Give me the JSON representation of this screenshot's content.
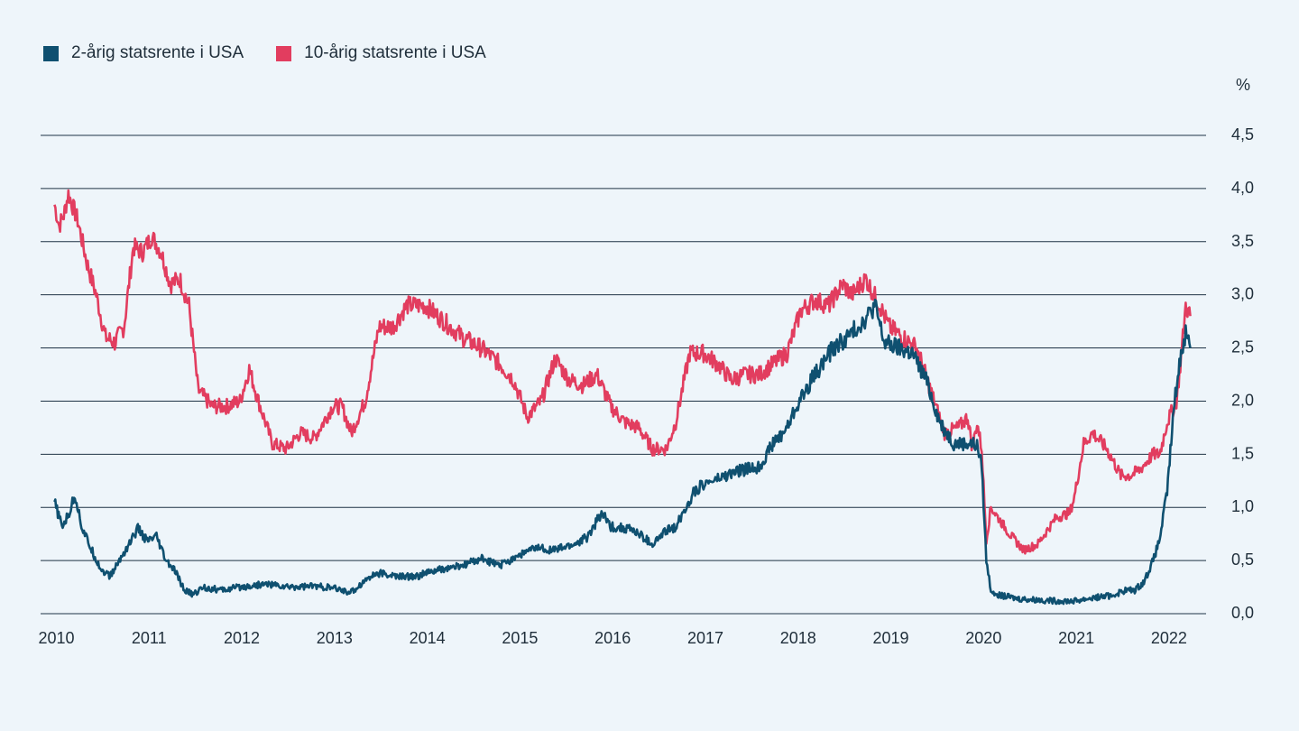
{
  "legend": [
    {
      "name": "2-årig statsrente i USA",
      "color": "#0f5070"
    },
    {
      "name": "10-årig statsrente i USA",
      "color": "#e23d5f"
    }
  ],
  "chart_data": {
    "type": "line",
    "title": "",
    "xlabel": "",
    "ylabel": "%",
    "xlim": [
      2009.85,
      2022.42
    ],
    "ylim": [
      0,
      4.5
    ],
    "x_ticks": [
      "2010",
      "2011",
      "2012",
      "2013",
      "2014",
      "2015",
      "2016",
      "2017",
      "2018",
      "2019",
      "2020",
      "2021",
      "2022"
    ],
    "y_ticks": [
      "0,0",
      "0,5",
      "1,0",
      "1,5",
      "2,0",
      "2,5",
      "3,0",
      "3,5",
      "4,0",
      "4,5"
    ],
    "grid": "horizontal",
    "legend_position": "top-left",
    "series": [
      {
        "name": "2-årig statsrente i USA",
        "color": "#0f5070",
        "x": [
          2010.0,
          2010.08,
          2010.15,
          2010.22,
          2010.3,
          2010.4,
          2010.5,
          2010.6,
          2010.7,
          2010.8,
          2010.9,
          2011.0,
          2011.1,
          2011.2,
          2011.3,
          2011.4,
          2011.5,
          2011.6,
          2011.8,
          2012.0,
          2012.3,
          2012.5,
          2012.8,
          2013.0,
          2013.1,
          2013.2,
          2013.4,
          2013.5,
          2013.7,
          2013.9,
          2014.0,
          2014.2,
          2014.4,
          2014.6,
          2014.8,
          2015.0,
          2015.2,
          2015.4,
          2015.6,
          2015.75,
          2015.9,
          2016.0,
          2016.2,
          2016.3,
          2016.45,
          2016.6,
          2016.7,
          2016.9,
          2017.0,
          2017.2,
          2017.4,
          2017.6,
          2017.75,
          2017.9,
          2018.0,
          2018.2,
          2018.4,
          2018.55,
          2018.75,
          2018.85,
          2018.95,
          2019.1,
          2019.25,
          2019.4,
          2019.55,
          2019.7,
          2019.8,
          2019.9,
          2019.95,
          2020.0,
          2020.05,
          2020.1,
          2020.2,
          2020.4,
          2020.6,
          2020.8,
          2021.0,
          2021.2,
          2021.4,
          2021.55,
          2021.65,
          2021.75,
          2021.85,
          2021.92,
          2022.0,
          2022.08,
          2022.15,
          2022.2,
          2022.25
        ],
        "y": [
          1.05,
          0.82,
          0.92,
          1.12,
          0.8,
          0.6,
          0.42,
          0.35,
          0.5,
          0.65,
          0.8,
          0.68,
          0.72,
          0.5,
          0.4,
          0.22,
          0.18,
          0.25,
          0.22,
          0.25,
          0.28,
          0.25,
          0.26,
          0.24,
          0.22,
          0.2,
          0.35,
          0.38,
          0.35,
          0.35,
          0.38,
          0.42,
          0.45,
          0.52,
          0.45,
          0.55,
          0.62,
          0.6,
          0.65,
          0.72,
          0.95,
          0.82,
          0.8,
          0.75,
          0.65,
          0.78,
          0.82,
          1.15,
          1.22,
          1.28,
          1.35,
          1.38,
          1.6,
          1.75,
          1.95,
          2.25,
          2.5,
          2.6,
          2.78,
          2.9,
          2.55,
          2.5,
          2.45,
          2.2,
          1.8,
          1.6,
          1.6,
          1.6,
          1.58,
          1.4,
          0.5,
          0.22,
          0.17,
          0.14,
          0.13,
          0.12,
          0.12,
          0.15,
          0.17,
          0.22,
          0.22,
          0.3,
          0.5,
          0.7,
          1.15,
          2.0,
          2.45,
          2.65,
          2.5
        ]
      },
      {
        "name": "10-årig statsrente i USA",
        "color": "#e23d5f",
        "x": [
          2010.0,
          2010.05,
          2010.1,
          2010.15,
          2010.25,
          2010.35,
          2010.45,
          2010.55,
          2010.65,
          2010.75,
          2010.85,
          2010.95,
          2011.05,
          2011.15,
          2011.25,
          2011.35,
          2011.45,
          2011.55,
          2011.7,
          2011.85,
          2012.0,
          2012.1,
          2012.2,
          2012.35,
          2012.5,
          2012.65,
          2012.8,
          2013.0,
          2013.1,
          2013.2,
          2013.35,
          2013.5,
          2013.65,
          2013.8,
          2014.0,
          2014.2,
          2014.4,
          2014.6,
          2014.8,
          2014.95,
          2015.1,
          2015.25,
          2015.4,
          2015.55,
          2015.7,
          2015.85,
          2016.0,
          2016.15,
          2016.3,
          2016.45,
          2016.6,
          2016.7,
          2016.85,
          2017.0,
          2017.15,
          2017.3,
          2017.45,
          2017.6,
          2017.75,
          2017.9,
          2018.05,
          2018.2,
          2018.35,
          2018.5,
          2018.6,
          2018.75,
          2018.9,
          2019.0,
          2019.15,
          2019.3,
          2019.45,
          2019.6,
          2019.75,
          2019.85,
          2019.9,
          2019.95,
          2020.0,
          2020.05,
          2020.1,
          2020.3,
          2020.45,
          2020.6,
          2020.8,
          2020.95,
          2021.0,
          2021.1,
          2021.2,
          2021.35,
          2021.5,
          2021.6,
          2021.7,
          2021.85,
          2021.92,
          2022.0,
          2022.1,
          2022.15,
          2022.2,
          2022.25
        ],
        "y": [
          3.85,
          3.65,
          3.75,
          3.95,
          3.7,
          3.3,
          3.0,
          2.6,
          2.55,
          2.7,
          3.45,
          3.4,
          3.55,
          3.4,
          3.1,
          3.15,
          2.9,
          2.1,
          1.95,
          1.95,
          2.0,
          2.3,
          2.0,
          1.6,
          1.55,
          1.7,
          1.65,
          1.95,
          1.95,
          1.7,
          2.0,
          2.7,
          2.7,
          2.9,
          2.9,
          2.75,
          2.6,
          2.5,
          2.35,
          2.2,
          1.85,
          2.0,
          2.4,
          2.2,
          2.15,
          2.25,
          1.95,
          1.8,
          1.75,
          1.55,
          1.55,
          1.8,
          2.45,
          2.45,
          2.35,
          2.2,
          2.25,
          2.25,
          2.35,
          2.45,
          2.85,
          2.95,
          2.9,
          3.1,
          3.0,
          3.15,
          2.9,
          2.7,
          2.6,
          2.5,
          2.1,
          1.7,
          1.75,
          1.85,
          1.55,
          1.8,
          1.55,
          0.7,
          1.0,
          0.75,
          0.6,
          0.65,
          0.9,
          0.95,
          1.1,
          1.6,
          1.7,
          1.55,
          1.3,
          1.3,
          1.35,
          1.5,
          1.5,
          1.8,
          2.0,
          2.4,
          2.9,
          2.8
        ]
      }
    ]
  }
}
